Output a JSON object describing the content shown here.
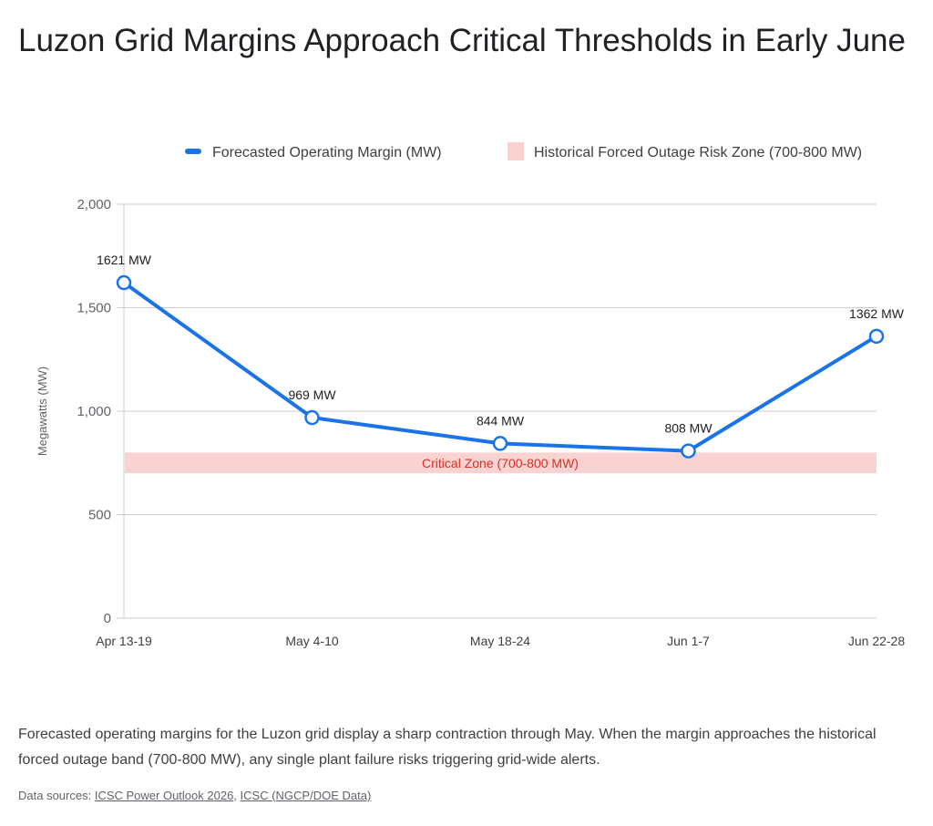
{
  "title": "Luzon Grid Margins Approach Critical Thresholds in Early June",
  "description": "Forecasted operating margins for the Luzon grid display a sharp contraction through May. When the margin approaches the historical forced outage band (700-800 MW), any single plant failure risks triggering grid-wide alerts.",
  "sources": {
    "label": "Data sources:",
    "links": [
      "ICSC Power Outlook 2026",
      "ICSC (NGCP/DOE Data)"
    ]
  },
  "chart_data": {
    "type": "line",
    "categories": [
      "Apr 13-19",
      "May 4-10",
      "May 18-24",
      "Jun 1-7",
      "Jun 22-28"
    ],
    "series": [
      {
        "name": "Forecasted Operating Margin (MW)",
        "values": [
          1621,
          969,
          844,
          808,
          1362
        ],
        "color": "#1a73e8",
        "data_labels": [
          "1621 MW",
          "969 MW",
          "844 MW",
          "808 MW",
          "1362 MW"
        ]
      }
    ],
    "band": {
      "name": "Historical Forced Outage Risk Zone (700-800 MW)",
      "from": 700,
      "to": 800,
      "color": "#f8d3d1",
      "label": "Critical Zone (700-800 MW)",
      "label_color": "#d93025"
    },
    "ylabel": "Megawatts (MW)",
    "xlabel": "",
    "ylim": [
      0,
      2000
    ],
    "yticks": [
      0,
      500,
      1000,
      1500,
      2000
    ],
    "ytick_labels": [
      "0",
      "500",
      "1,000",
      "1,500",
      "2,000"
    ],
    "grid": true,
    "legend_position": "top-right"
  }
}
